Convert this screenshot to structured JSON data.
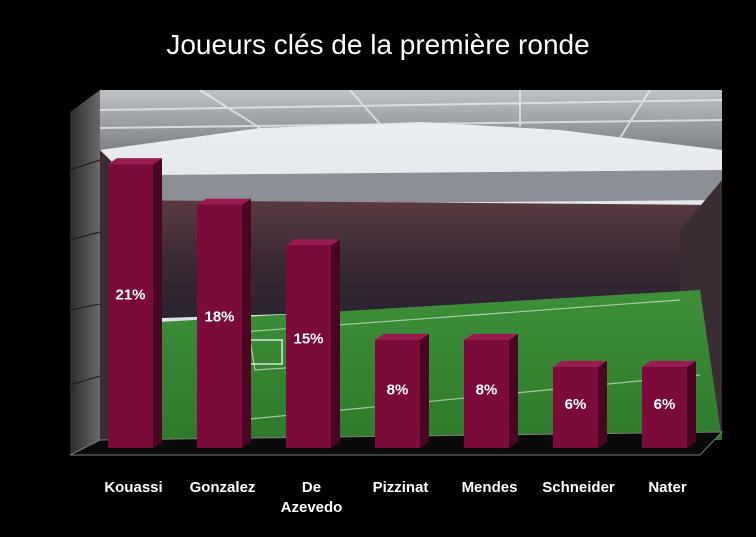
{
  "chart_data": {
    "type": "bar",
    "title": "Joueurs clés de la première ronde",
    "categories": [
      "Kouassi",
      "Gonzalez",
      "De Azevedo",
      "Pizzinat",
      "Mendes",
      "Schneider",
      "Nater"
    ],
    "category_lines": [
      [
        "Kouassi"
      ],
      [
        "Gonzalez"
      ],
      [
        "De",
        "Azevedo"
      ],
      [
        "Pizzinat"
      ],
      [
        "Mendes"
      ],
      [
        "Schneider"
      ],
      [
        "Nater"
      ]
    ],
    "values": [
      21,
      18,
      15,
      8,
      8,
      6,
      6
    ],
    "value_labels": [
      "21%",
      "18%",
      "15%",
      "8%",
      "8%",
      "6%",
      "6%"
    ],
    "unit": "%",
    "ylim": [
      0,
      25
    ],
    "grid": false,
    "style": "3d-column",
    "background": "stadium photo",
    "colors": {
      "bar_front": "#7a0b3a",
      "bar_side": "#4a0522",
      "bar_top": "#9c1a52",
      "text": "#ffffff",
      "page_bg": "#000000"
    }
  }
}
